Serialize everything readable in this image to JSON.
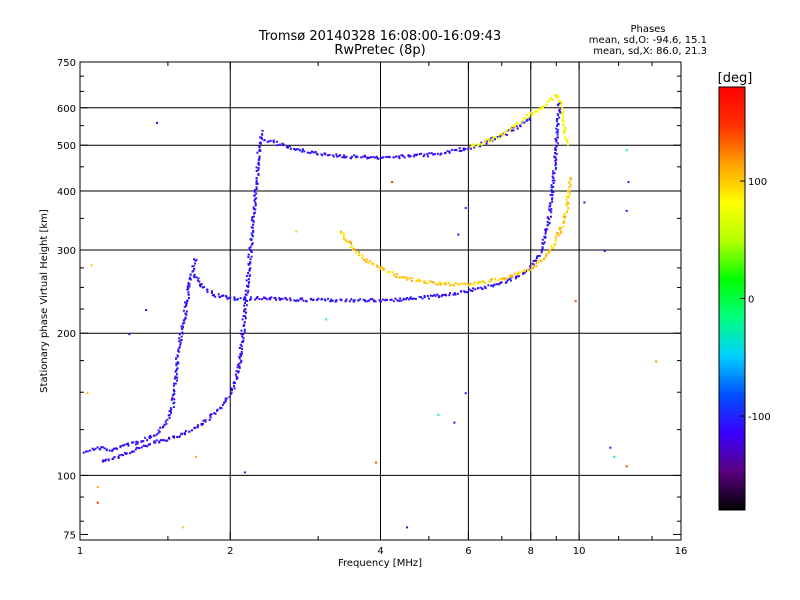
{
  "chart_data": {
    "type": "scatter",
    "title": "Tromsø 20140328 16:08:00-16:09:43",
    "subtitle": "RwPretec (8p)",
    "xlabel": "Frequency [MHz]",
    "ylabel": "Stationary phase Virtual Height [km]",
    "x_scale": "log",
    "y_scale": "log",
    "xlim": [
      1,
      16
    ],
    "ylim": [
      73,
      750
    ],
    "x_ticks": [
      1,
      2,
      4,
      6,
      8,
      10,
      16
    ],
    "y_ticks": [
      75,
      100,
      200,
      300,
      400,
      500,
      600,
      750
    ],
    "x_grid": [
      2,
      4,
      6,
      8,
      10
    ],
    "y_grid": [
      100,
      200,
      300,
      400,
      500,
      600
    ],
    "grid": true,
    "stats": {
      "heading": "Phases",
      "o_mode": "mean, sd,O: -94.6, 15.1",
      "x_mode": "mean, sd,X:  86.0, 21.3"
    },
    "colorbar": {
      "label": "[deg]",
      "range": [
        -180,
        180
      ],
      "ticks": [
        100,
        0,
        -100
      ],
      "colors": [
        "#000000",
        "#5a0080",
        "#3a00ff",
        "#0050ff",
        "#00d0ff",
        "#00ff80",
        "#00ff00",
        "#b4ff00",
        "#ffff00",
        "#ffa000",
        "#ff3000",
        "#ff0000"
      ]
    },
    "traces": [
      {
        "name": "",
        "phase": -110,
        "points": [
          [
            1.02,
            113
          ],
          [
            1.05,
            114
          ],
          [
            1.1,
            115
          ],
          [
            1.15,
            113
          ],
          [
            1.2,
            116
          ],
          [
            1.3,
            118
          ],
          [
            1.4,
            122
          ],
          [
            1.48,
            130
          ],
          [
            1.52,
            138
          ],
          [
            1.54,
            150
          ],
          [
            1.55,
            165
          ],
          [
            1.56,
            180
          ],
          [
            1.58,
            195
          ],
          [
            1.6,
            210
          ],
          [
            1.62,
            225
          ],
          [
            1.64,
            245
          ],
          [
            1.66,
            265
          ],
          [
            1.68,
            280
          ],
          [
            1.7,
            290
          ]
        ]
      },
      {
        "name": "",
        "phase": -110,
        "points": [
          [
            1.1,
            108
          ],
          [
            1.2,
            110
          ],
          [
            1.3,
            115
          ],
          [
            1.4,
            118
          ],
          [
            1.5,
            120
          ],
          [
            1.6,
            123
          ],
          [
            1.7,
            127
          ],
          [
            1.8,
            132
          ],
          [
            1.9,
            140
          ],
          [
            2.0,
            150
          ],
          [
            2.05,
            160
          ],
          [
            2.08,
            175
          ],
          [
            2.1,
            190
          ],
          [
            2.12,
            210
          ],
          [
            2.14,
            235
          ],
          [
            2.16,
            260
          ],
          [
            2.18,
            290
          ],
          [
            2.2,
            320
          ],
          [
            2.22,
            360
          ],
          [
            2.24,
            400
          ],
          [
            2.26,
            450
          ],
          [
            2.28,
            500
          ],
          [
            2.3,
            540
          ]
        ]
      },
      {
        "name": "",
        "phase": -110,
        "points": [
          [
            1.68,
            268
          ],
          [
            1.75,
            252
          ],
          [
            1.85,
            242
          ],
          [
            2.0,
            238
          ],
          [
            2.3,
            238
          ],
          [
            2.6,
            237
          ],
          [
            3.0,
            236
          ],
          [
            3.5,
            236
          ],
          [
            4.0,
            236
          ],
          [
            4.5,
            237
          ],
          [
            5.0,
            240
          ],
          [
            5.5,
            243
          ],
          [
            6.0,
            247
          ],
          [
            6.5,
            252
          ],
          [
            7.0,
            258
          ],
          [
            7.5,
            265
          ],
          [
            7.8,
            272
          ],
          [
            8.0,
            280
          ],
          [
            8.3,
            295
          ],
          [
            8.5,
            320
          ],
          [
            8.7,
            360
          ],
          [
            8.8,
            400
          ],
          [
            8.9,
            460
          ],
          [
            9.0,
            520
          ],
          [
            9.05,
            580
          ],
          [
            9.1,
            620
          ]
        ]
      },
      {
        "name": "",
        "phase": -110,
        "points": [
          [
            2.3,
            520
          ],
          [
            2.5,
            505
          ],
          [
            2.8,
            488
          ],
          [
            3.2,
            478
          ],
          [
            3.6,
            474
          ],
          [
            4.0,
            473
          ],
          [
            4.5,
            476
          ],
          [
            5.0,
            480
          ],
          [
            5.5,
            487
          ],
          [
            6.0,
            496
          ],
          [
            6.5,
            510
          ],
          [
            7.0,
            528
          ],
          [
            7.5,
            550
          ],
          [
            8.0,
            575
          ]
        ]
      },
      {
        "name": "",
        "phase": 100,
        "points": [
          [
            3.3,
            330
          ],
          [
            3.5,
            305
          ],
          [
            3.7,
            288
          ],
          [
            4.0,
            275
          ],
          [
            4.3,
            266
          ],
          [
            4.6,
            261
          ],
          [
            5.0,
            257
          ],
          [
            5.5,
            255
          ],
          [
            6.0,
            255
          ],
          [
            6.5,
            258
          ],
          [
            7.0,
            262
          ],
          [
            7.5,
            268
          ],
          [
            8.0,
            276
          ],
          [
            8.5,
            290
          ],
          [
            8.9,
            310
          ],
          [
            9.2,
            340
          ],
          [
            9.4,
            370
          ],
          [
            9.5,
            400
          ],
          [
            9.55,
            430
          ]
        ]
      },
      {
        "name": "",
        "phase": 80,
        "points": [
          [
            6.0,
            498
          ],
          [
            6.5,
            512
          ],
          [
            7.0,
            530
          ],
          [
            7.5,
            560
          ],
          [
            8.0,
            585
          ],
          [
            8.5,
            610
          ],
          [
            9.0,
            640
          ],
          [
            9.2,
            600
          ],
          [
            9.3,
            550
          ],
          [
            9.4,
            500
          ]
        ]
      }
    ],
    "scattered_points": [
      {
        "x": 1.42,
        "y": 560,
        "phase": -110
      },
      {
        "x": 1.05,
        "y": 280,
        "phase": 100
      },
      {
        "x": 1.08,
        "y": 88,
        "phase": 150
      },
      {
        "x": 1.6,
        "y": 78,
        "phase": 100
      },
      {
        "x": 2.13,
        "y": 102,
        "phase": -110
      },
      {
        "x": 3.9,
        "y": 107,
        "phase": 140
      },
      {
        "x": 4.5,
        "y": 78,
        "phase": -110
      },
      {
        "x": 5.2,
        "y": 135,
        "phase": -20
      },
      {
        "x": 5.6,
        "y": 130,
        "phase": -110
      },
      {
        "x": 5.9,
        "y": 150,
        "phase": -110
      },
      {
        "x": 5.7,
        "y": 325,
        "phase": -110
      },
      {
        "x": 5.9,
        "y": 370,
        "phase": -100
      },
      {
        "x": 12.4,
        "y": 490,
        "phase": -10
      },
      {
        "x": 12.5,
        "y": 420,
        "phase": -100
      },
      {
        "x": 12.4,
        "y": 365,
        "phase": -110
      },
      {
        "x": 11.2,
        "y": 300,
        "phase": -110
      },
      {
        "x": 10.2,
        "y": 380,
        "phase": -110
      },
      {
        "x": 11.5,
        "y": 115,
        "phase": -110
      },
      {
        "x": 11.7,
        "y": 110,
        "phase": -10
      },
      {
        "x": 12.4,
        "y": 105,
        "phase": 140
      },
      {
        "x": 14.2,
        "y": 175,
        "phase": 120
      },
      {
        "x": 9.8,
        "y": 235,
        "phase": 140
      },
      {
        "x": 1.25,
        "y": 200,
        "phase": -110
      },
      {
        "x": 1.35,
        "y": 225,
        "phase": -110
      },
      {
        "x": 2.7,
        "y": 330,
        "phase": 100
      },
      {
        "x": 3.1,
        "y": 215,
        "phase": -20
      },
      {
        "x": 4.2,
        "y": 420,
        "phase": 150
      },
      {
        "x": 1.03,
        "y": 150,
        "phase": 100
      },
      {
        "x": 1.08,
        "y": 95,
        "phase": 110
      },
      {
        "x": 1.7,
        "y": 110,
        "phase": 110
      }
    ]
  }
}
